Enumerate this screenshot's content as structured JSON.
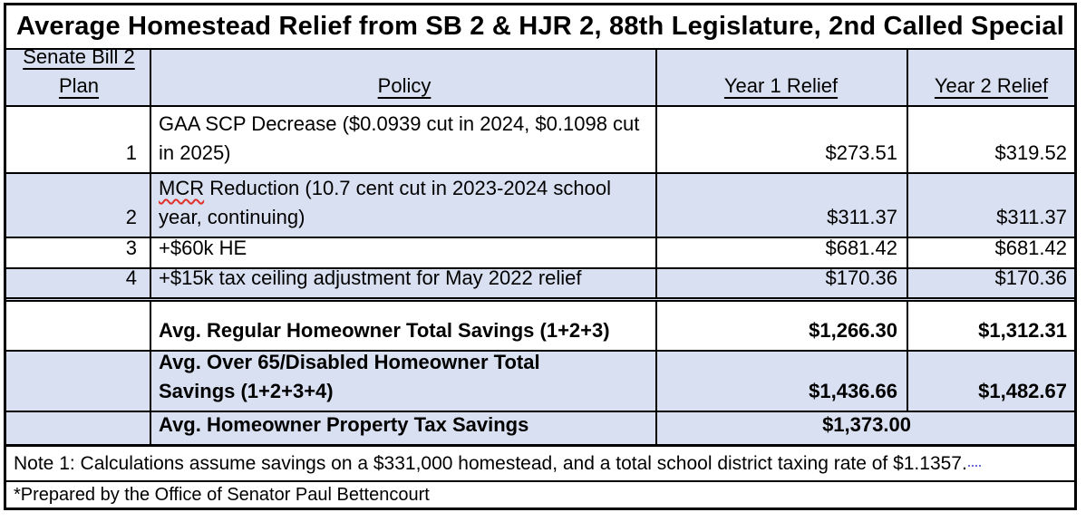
{
  "title": "Average Homestead Relief from SB 2 & HJR 2, 88th Legislature, 2nd Called Special",
  "header": {
    "plan": "Senate Bill 2 Plan",
    "policy": "Policy",
    "year1": "Year 1 Relief",
    "year2": "Year 2 Relief"
  },
  "rows": [
    {
      "plan": "1",
      "policy": "GAA SCP Decrease ($0.0939 cut in 2024, $0.1098 cut in 2025)",
      "year1": "$273.51",
      "year2": "$319.52"
    },
    {
      "plan": "2",
      "policy_word": "MCR",
      "policy_rest": " Reduction (10.7 cent cut in 2023-2024 school year, continuing)",
      "year1": "$311.37",
      "year2": "$311.37"
    },
    {
      "plan": "3",
      "policy": "+$60k HE",
      "year1": "$681.42",
      "year2": "$681.42"
    },
    {
      "plan": "4",
      "policy": "+$15k tax ceiling adjustment for May 2022 relief",
      "year1": "$170.36",
      "year2": "$170.36"
    }
  ],
  "summary": [
    {
      "label": "Avg. Regular Homeowner Total Savings (1+2+3)",
      "year1": "$1,266.30",
      "year2": "$1,312.31"
    },
    {
      "label": "Avg. Over 65/Disabled Homeowner Total Savings (1+2+3+4)",
      "year1": "$1,436.66",
      "year2": "$1,482.67"
    },
    {
      "label": "Avg. Homeowner Property Tax Savings",
      "combined": "$1,373.00"
    }
  ],
  "notes": {
    "note1": "Note 1: Calculations assume savings on a $331,000 homestead, and a total school district taxing rate of $1.1357.",
    "prepared": "*Prepared by the Office of Senator Paul Bettencourt"
  },
  "colors": {
    "row_shade": "#d9e0f1",
    "border": "#000000",
    "spellcheck_underline": "#e0302a",
    "proofing_mark": "#6a6ad8"
  }
}
